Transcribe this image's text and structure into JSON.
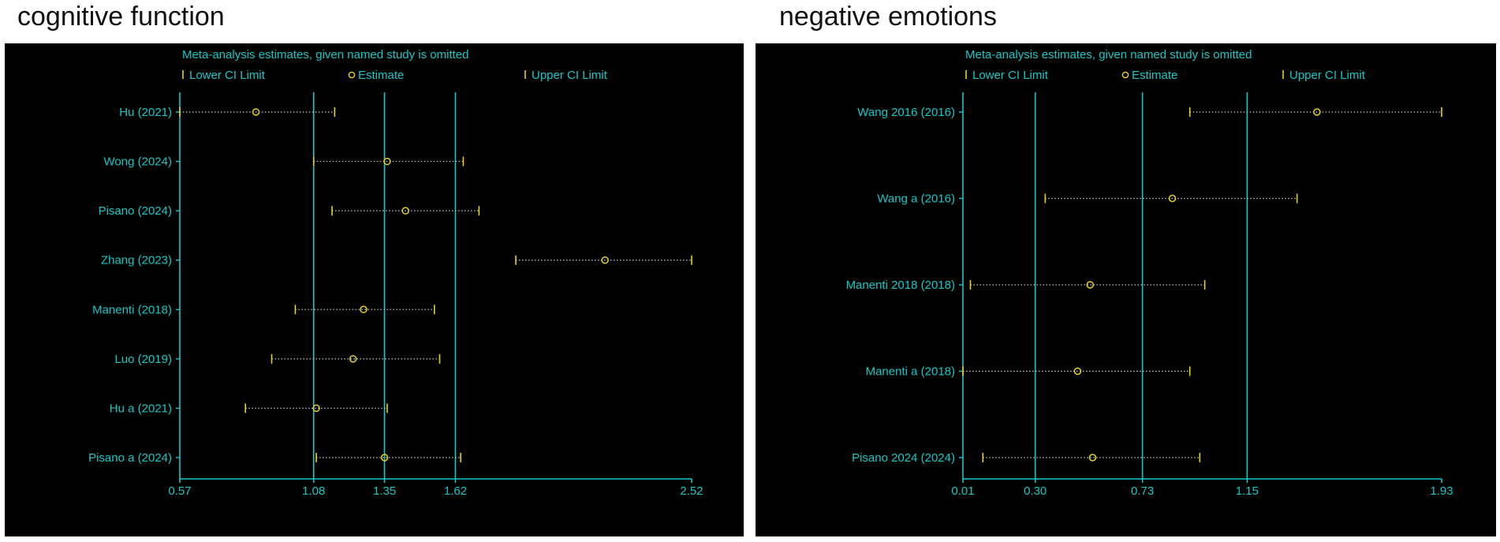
{
  "panels": [
    {
      "title": "cognitive function"
    },
    {
      "title": "negative emotions"
    }
  ],
  "legend": {
    "heading": "Meta-analysis estimates, given named study is omitted",
    "lower": "Lower CI Limit",
    "estimate": "Estimate",
    "upper": "Upper CI Limit"
  },
  "colors": {
    "background": "#000000",
    "axis": "#14c8c8",
    "text": "#14c8c8",
    "marker": "#e6d21e",
    "ci_line": "#c8c8c8"
  },
  "chart_data": [
    {
      "type": "forest",
      "title": "cognitive function",
      "x_ticks": [
        0.57,
        1.08,
        1.35,
        1.62,
        2.52
      ],
      "x_tick_labels": [
        "0.57",
        "1.08",
        "1.35",
        "1.62",
        "2.52"
      ],
      "reference_lines": [
        1.08,
        1.35,
        1.62
      ],
      "xlim": [
        0.57,
        2.52
      ],
      "studies": [
        "Hu  (2021)",
        "Wong  (2024)",
        "Pisano  (2024)",
        "Zhang  (2023)",
        "Manenti  (2018)",
        "Luo  (2019)",
        "Hu a (2021)",
        "Pisano a (2024)"
      ],
      "lower": [
        0.57,
        1.08,
        1.15,
        1.85,
        1.01,
        0.92,
        0.82,
        1.09
      ],
      "estimate": [
        0.86,
        1.36,
        1.43,
        2.19,
        1.27,
        1.23,
        1.09,
        1.35
      ],
      "upper": [
        1.16,
        1.65,
        1.71,
        2.52,
        1.54,
        1.56,
        1.36,
        1.64
      ]
    },
    {
      "type": "forest",
      "title": "negative emotions",
      "x_ticks": [
        0.01,
        0.3,
        0.73,
        1.15,
        1.93
      ],
      "x_tick_labels": [
        "0.01",
        "0.30",
        "0.73",
        "1.15",
        "1.93"
      ],
      "reference_lines": [
        0.3,
        0.73,
        1.15
      ],
      "xlim": [
        0.01,
        1.93
      ],
      "studies": [
        "Wang 2016 (2016)",
        "Wang a (2016)",
        "Manenti 2018 (2018)",
        "Manenti a (2018)",
        "Pisano 2024 (2024)"
      ],
      "lower": [
        0.92,
        0.34,
        0.04,
        0.01,
        0.09
      ],
      "estimate": [
        1.43,
        0.85,
        0.52,
        0.47,
        0.53
      ],
      "upper": [
        1.93,
        1.35,
        0.98,
        0.92,
        0.96
      ]
    }
  ]
}
